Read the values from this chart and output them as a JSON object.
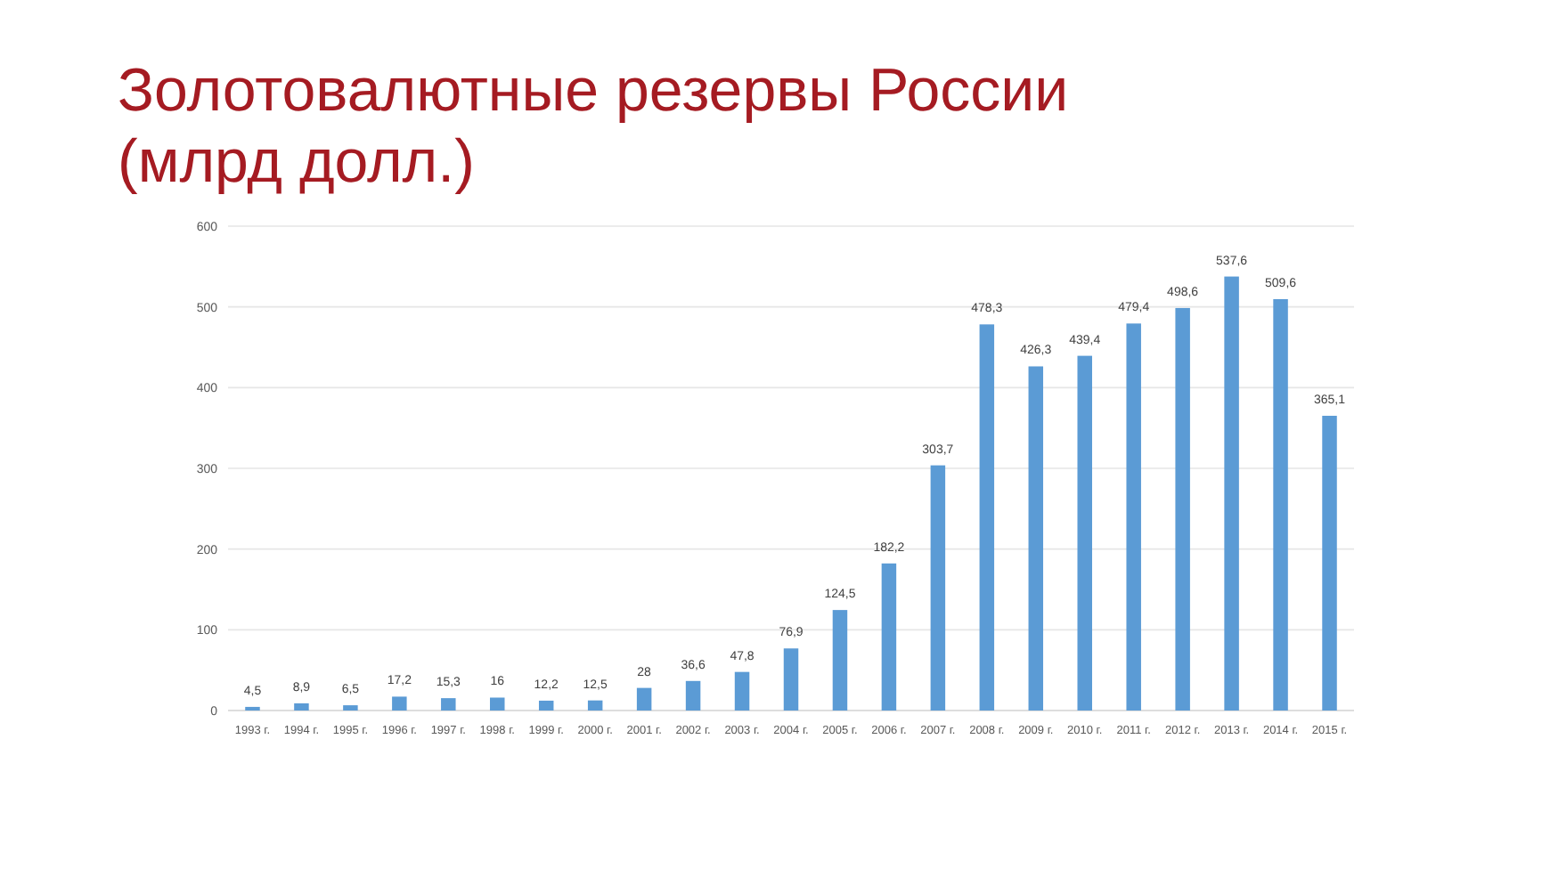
{
  "chart_data": {
    "type": "bar",
    "title": "Золотовалютные резервы России\n(млрд долл.)",
    "categories": [
      "1993 г.",
      "1994 г.",
      "1995 г.",
      "1996 г.",
      "1997 г.",
      "1998 г.",
      "1999 г.",
      "2000 г.",
      "2001 г.",
      "2002 г.",
      "2003 г.",
      "2004 г.",
      "2005 г.",
      "2006 г.",
      "2007 г.",
      "2008 г.",
      "2009 г.",
      "2010 г.",
      "2011 г.",
      "2012 г.",
      "2013 г.",
      "2014 г.",
      "2015 г."
    ],
    "values": [
      4.5,
      8.9,
      6.5,
      17.2,
      15.3,
      16,
      12.2,
      12.5,
      28,
      36.6,
      47.8,
      76.9,
      124.5,
      182.2,
      303.7,
      478.3,
      426.3,
      439.4,
      479.4,
      498.6,
      537.6,
      509.6,
      365.1
    ],
    "value_labels": [
      "4,5",
      "8,9",
      "6,5",
      "17,2",
      "15,3",
      "16",
      "12,2",
      "12,5",
      "28",
      "36,6",
      "47,8",
      "76,9",
      "124,5",
      "182,2",
      "303,7",
      "478,3",
      "426,3",
      "439,4",
      "479,4",
      "498,6",
      "537,6",
      "509,6",
      "365,1"
    ],
    "color": "#5b9bd5",
    "ylim": [
      0,
      600
    ],
    "yticks": [
      0,
      100,
      200,
      300,
      400,
      500,
      600
    ],
    "grid": "y"
  }
}
